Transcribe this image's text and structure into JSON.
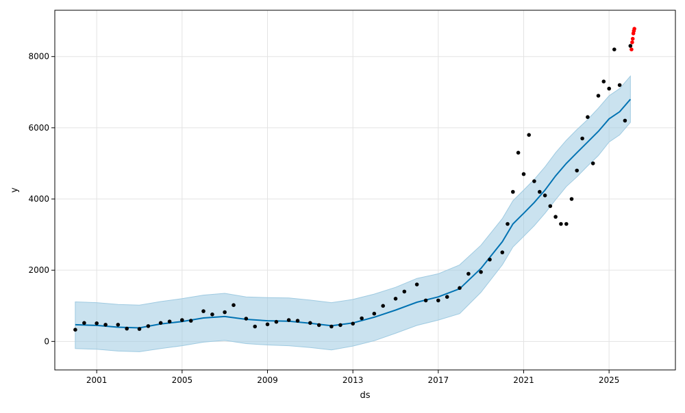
{
  "chart_data": {
    "type": "line",
    "title": "",
    "xlabel": "ds",
    "ylabel": "y",
    "x_ticks": [
      "2001",
      "2005",
      "2009",
      "2013",
      "2017",
      "2021",
      "2025"
    ],
    "y_ticks": [
      "0",
      "2000",
      "4000",
      "6000",
      "8000"
    ],
    "xlim": [
      "1999-01-15",
      "2028-02-10"
    ],
    "ylim": [
      -800,
      9300
    ],
    "grid": true,
    "colors": {
      "forecast_line": "#0072B2",
      "interval_band": "#9ecae1",
      "observed_points": "#000000",
      "recent_points": "#ff0000"
    },
    "series": [
      {
        "role": "forecast",
        "x": [
          "2000-01-01",
          "2001-01-01",
          "2002-01-01",
          "2003-01-01",
          "2004-01-01",
          "2005-01-01",
          "2006-01-01",
          "2007-01-01",
          "2008-01-01",
          "2009-01-01",
          "2010-01-01",
          "2011-01-01",
          "2012-01-01",
          "2013-01-01",
          "2014-01-01",
          "2015-01-01",
          "2016-01-01",
          "2017-01-01",
          "2018-01-01",
          "2019-01-01",
          "2020-01-01",
          "2020-07-01",
          "2021-01-01",
          "2021-07-01",
          "2022-01-01",
          "2022-07-01",
          "2023-01-01",
          "2023-07-01",
          "2024-01-01",
          "2024-07-01",
          "2025-01-01",
          "2025-07-01",
          "2026-01-01"
        ],
        "y": [
          470,
          450,
          400,
          380,
          490,
          560,
          660,
          700,
          620,
          580,
          570,
          510,
          440,
          520,
          680,
          880,
          1100,
          1250,
          1480,
          2050,
          2800,
          3300,
          3600,
          3900,
          4250,
          4650,
          5000,
          5300,
          5600,
          5900,
          6250,
          6450,
          6800
        ],
        "lower": [
          -200,
          -220,
          -270,
          -290,
          -200,
          -120,
          -20,
          30,
          -60,
          -100,
          -120,
          -170,
          -240,
          -130,
          20,
          230,
          450,
          600,
          780,
          1380,
          2150,
          2650,
          2950,
          3250,
          3600,
          3980,
          4350,
          4620,
          4930,
          5220,
          5600,
          5800,
          6150
        ],
        "upper": [
          1110,
          1090,
          1040,
          1020,
          1120,
          1200,
          1300,
          1350,
          1250,
          1230,
          1220,
          1160,
          1090,
          1180,
          1330,
          1520,
          1770,
          1900,
          2150,
          2700,
          3450,
          3950,
          4250,
          4550,
          4900,
          5300,
          5650,
          5950,
          6230,
          6550,
          6900,
          7100,
          7450
        ]
      },
      {
        "role": "observed",
        "x": [
          "2000-01-01",
          "2000-06-01",
          "2001-01-01",
          "2001-06-01",
          "2002-01-01",
          "2002-06-01",
          "2003-01-01",
          "2003-06-01",
          "2004-01-01",
          "2004-06-01",
          "2005-01-01",
          "2005-06-01",
          "2006-01-01",
          "2006-06-01",
          "2007-01-01",
          "2007-06-01",
          "2008-01-01",
          "2008-06-01",
          "2009-01-01",
          "2009-06-01",
          "2010-01-01",
          "2010-06-01",
          "2011-01-01",
          "2011-06-01",
          "2012-01-01",
          "2012-06-01",
          "2013-01-01",
          "2013-06-01",
          "2014-01-01",
          "2014-06-01",
          "2015-01-01",
          "2015-06-01",
          "2016-01-01",
          "2016-06-01",
          "2017-01-01",
          "2017-06-01",
          "2018-01-01",
          "2018-06-01",
          "2019-01-01",
          "2019-06-01",
          "2020-01-01",
          "2020-04-01",
          "2020-07-01",
          "2020-10-01",
          "2021-01-01",
          "2021-04-01",
          "2021-07-01",
          "2021-10-01",
          "2022-01-01",
          "2022-04-01",
          "2022-07-01",
          "2022-10-01",
          "2023-01-01",
          "2023-04-01",
          "2023-07-01",
          "2023-10-01",
          "2024-01-01",
          "2024-04-01",
          "2024-07-01",
          "2024-10-01",
          "2025-01-01",
          "2025-04-01",
          "2025-07-01",
          "2025-10-01",
          "2026-01-01"
        ],
        "y": [
          330,
          520,
          510,
          470,
          470,
          360,
          350,
          430,
          520,
          560,
          600,
          580,
          850,
          760,
          820,
          1020,
          640,
          420,
          480,
          550,
          600,
          580,
          520,
          460,
          420,
          460,
          500,
          650,
          780,
          1000,
          1200,
          1400,
          1600,
          1150,
          1150,
          1250,
          1500,
          1900,
          1950,
          2300,
          2500,
          3300,
          4200,
          5300,
          4700,
          5800,
          4500,
          4200,
          4100,
          3800,
          3500,
          3300,
          3300,
          4000,
          4800,
          5700,
          6300,
          5000,
          6900,
          7300,
          7100,
          8200,
          7200,
          6200,
          8300
        ]
      },
      {
        "role": "recent",
        "x": [
          "2026-01-20",
          "2026-02-01",
          "2026-02-10",
          "2026-02-20",
          "2026-03-01",
          "2026-03-10"
        ],
        "y": [
          8200,
          8400,
          8500,
          8650,
          8720,
          8780
        ]
      }
    ]
  }
}
